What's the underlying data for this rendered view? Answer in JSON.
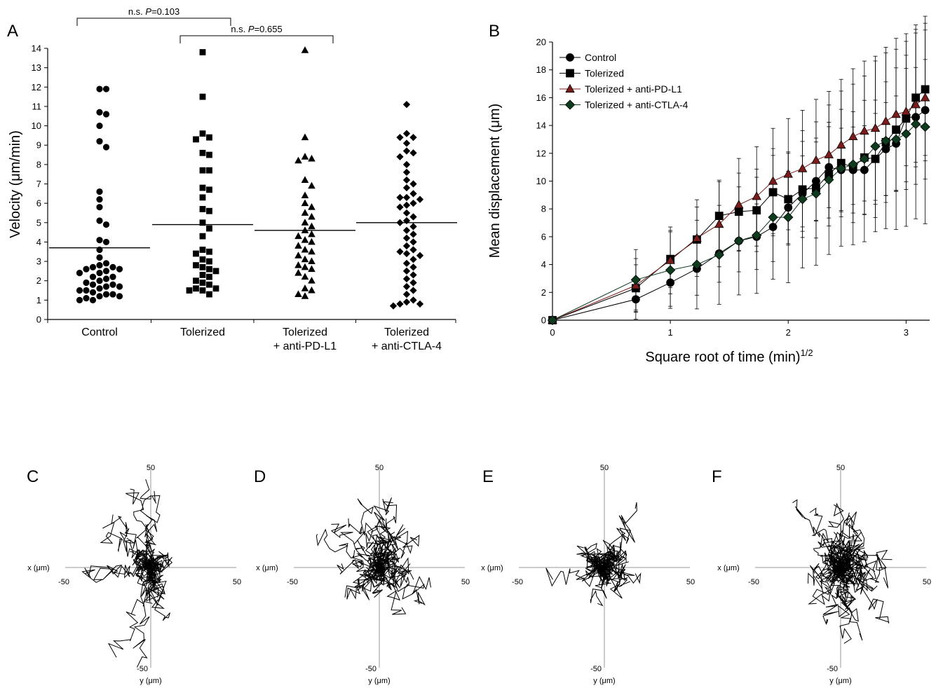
{
  "panels": {
    "A": "A",
    "B": "B",
    "C": "C",
    "D": "D",
    "E": "E",
    "F": "F"
  },
  "colors": {
    "control": "#000000",
    "tolerized": "#000000",
    "pdl1": "#7a1c1c",
    "ctla4": "#0e3a1e",
    "axis_grey": "#9a9a9a"
  },
  "chart_data": [
    {
      "type": "scatter",
      "panel": "A",
      "ylabel": "Velocity (μm/min)",
      "ylim": [
        0,
        14
      ],
      "yticks": [
        0,
        1,
        2,
        3,
        4,
        5,
        6,
        7,
        8,
        9,
        10,
        11,
        12,
        13,
        14
      ],
      "categories": [
        "Control",
        "Tolerized",
        "Tolerized + anti-PD-L1",
        "Tolerized + anti-CTLA-4"
      ],
      "category_label_lines": [
        [
          "Control"
        ],
        [
          "Tolerized"
        ],
        [
          "Tolerized",
          "+ anti-PD-L1"
        ],
        [
          "Tolerized",
          "+ anti-CTLA-4"
        ]
      ],
      "markers": [
        "circle",
        "square",
        "triangle",
        "diamond"
      ],
      "series": [
        {
          "values": [
            11.9,
            11.9,
            10.7,
            10.6,
            10.0,
            9.2,
            8.9,
            6.6,
            6.2,
            5.8,
            5.1,
            4.9,
            4.1,
            4.0,
            3.6,
            3.2,
            2.9,
            2.8,
            2.7,
            2.7,
            2.6,
            2.6,
            2.5,
            2.4,
            2.4,
            2.2,
            2.2,
            2.1,
            2.0,
            1.9,
            1.8,
            1.8,
            1.7,
            1.7,
            1.6,
            1.5,
            1.5,
            1.4,
            1.3,
            1.3,
            1.2,
            1.2,
            1.1,
            1.0,
            1.0
          ],
          "mean": 3.7
        },
        {
          "values": [
            13.8,
            11.5,
            9.6,
            9.4,
            9.3,
            8.6,
            8.5,
            7.7,
            7.7,
            6.8,
            6.7,
            6.3,
            5.7,
            5.6,
            5.0,
            4.7,
            4.3,
            3.6,
            3.5,
            3.4,
            3.1,
            3.0,
            2.8,
            2.7,
            2.6,
            2.5,
            2.3,
            2.2,
            2.0,
            1.9,
            1.8,
            1.6,
            1.6,
            1.5,
            1.5,
            1.3
          ],
          "mean": 4.9
        },
        {
          "values": [
            13.9,
            9.4,
            8.4,
            8.3,
            8.2,
            7.2,
            6.9,
            6.4,
            6.0,
            5.8,
            5.5,
            5.3,
            5.0,
            4.8,
            4.6,
            4.4,
            4.3,
            4.1,
            4.0,
            3.8,
            3.6,
            3.5,
            3.3,
            3.1,
            3.0,
            2.8,
            2.7,
            2.6,
            2.4,
            2.2,
            2.0,
            1.6,
            1.5,
            1.3,
            1.2
          ],
          "mean": 4.6
        },
        {
          "values": [
            11.1,
            9.6,
            9.4,
            9.4,
            9.1,
            8.7,
            8.6,
            8.4,
            8.0,
            7.6,
            7.2,
            7.0,
            6.8,
            6.5,
            6.3,
            6.3,
            6.2,
            6.0,
            5.9,
            5.8,
            5.5,
            5.3,
            5.1,
            5.0,
            4.8,
            4.6,
            4.4,
            4.2,
            4.0,
            3.8,
            3.6,
            3.5,
            3.4,
            3.3,
            3.1,
            2.9,
            2.7,
            2.5,
            2.3,
            2.1,
            1.9,
            1.7,
            1.5,
            1.3,
            1.0,
            0.9,
            0.8,
            0.8,
            0.7
          ],
          "mean": 5.0
        }
      ],
      "annotations": [
        {
          "from": 0,
          "to": 1,
          "prefix": "n.s. ",
          "pvar": "P",
          "pval": "=0.103"
        },
        {
          "from": 1,
          "to": 2,
          "prefix": "n.s. ",
          "pvar": "P",
          "pval": "=0.655"
        }
      ]
    },
    {
      "type": "line",
      "panel": "B",
      "ylabel": "Mean displacement (μm)",
      "xlabel": "Square root of time (min)",
      "xlabel_sup": "1/2",
      "xlim": [
        0,
        3.2
      ],
      "ylim": [
        0,
        20
      ],
      "xticks": [
        0,
        1,
        2,
        3
      ],
      "yticks": [
        0,
        2,
        4,
        6,
        8,
        10,
        12,
        14,
        16,
        18,
        20
      ],
      "legend_position": "top-left",
      "series": [
        {
          "name": "Control",
          "marker": "circle",
          "x": [
            0,
            0.707,
            1.0,
            1.225,
            1.414,
            1.581,
            1.732,
            1.871,
            2.0,
            2.121,
            2.236,
            2.345,
            2.449,
            2.55,
            2.646,
            2.739,
            2.828,
            2.915,
            3.0,
            3.082,
            3.162
          ],
          "y": [
            0,
            1.5,
            2.7,
            3.7,
            4.8,
            5.7,
            6.0,
            6.7,
            8.1,
            9.1,
            10.0,
            11.0,
            10.8,
            10.8,
            10.8,
            11.6,
            12.3,
            12.7,
            14.6,
            14.6,
            15.1
          ]
        },
        {
          "name": "Tolerized",
          "marker": "square",
          "x": [
            0,
            0.707,
            1.0,
            1.225,
            1.414,
            1.581,
            1.732,
            1.871,
            2.0,
            2.121,
            2.236,
            2.345,
            2.449,
            2.55,
            2.646,
            2.739,
            2.828,
            2.915,
            3.0,
            3.082,
            3.162
          ],
          "y": [
            0,
            2.3,
            4.4,
            5.8,
            7.5,
            7.8,
            7.9,
            9.2,
            8.7,
            9.4,
            9.5,
            10.5,
            11.3,
            11.0,
            11.7,
            11.6,
            12.8,
            13.7,
            14.5,
            16.0,
            16.6
          ]
        },
        {
          "name": "Tolerized + anti-PD-L1",
          "marker": "triangle",
          "x": [
            0,
            0.707,
            1.0,
            1.225,
            1.414,
            1.581,
            1.732,
            1.871,
            2.0,
            2.121,
            2.236,
            2.345,
            2.449,
            2.55,
            2.646,
            2.739,
            2.828,
            2.915,
            3.0,
            3.082,
            3.162
          ],
          "y": [
            0,
            2.5,
            4.3,
            5.9,
            6.9,
            8.3,
            8.9,
            10.0,
            10.5,
            10.9,
            11.5,
            11.9,
            12.6,
            13.2,
            13.6,
            13.8,
            14.3,
            14.8,
            15.0,
            15.5,
            16.0
          ]
        },
        {
          "name": "Tolerized + anti-CTLA-4",
          "marker": "diamond",
          "x": [
            0,
            0.707,
            1.0,
            1.225,
            1.414,
            1.581,
            1.732,
            1.871,
            2.0,
            2.121,
            2.236,
            2.345,
            2.449,
            2.55,
            2.646,
            2.739,
            2.828,
            2.915,
            3.0,
            3.082,
            3.162
          ],
          "y": [
            0,
            2.9,
            3.6,
            4.0,
            4.7,
            5.7,
            6.1,
            7.4,
            7.4,
            8.7,
            9.1,
            10.1,
            10.9,
            11.2,
            11.6,
            12.5,
            12.9,
            13.0,
            13.4,
            14.1,
            13.9
          ]
        }
      ]
    },
    {
      "type": "scatter",
      "panel": "C",
      "subtype": "track-plot",
      "xlabel": "x (μm)",
      "ylabel": "y (μm)",
      "xlim": [
        -50,
        50
      ],
      "ylim": [
        -50,
        50
      ],
      "tick_labels": {
        "x_neg": "-50",
        "x_pos": "50",
        "y_pos": "50",
        "y_neg": "-50"
      },
      "track_endpoints": [
        [
          -3,
          45
        ],
        [
          -12,
          40
        ],
        [
          -22,
          27
        ],
        [
          -28,
          20
        ],
        [
          -35,
          -5
        ],
        [
          -38,
          -3
        ],
        [
          -20,
          -45
        ],
        [
          -8,
          -50
        ],
        [
          -8,
          3
        ],
        [
          -3,
          22
        ],
        [
          2,
          39
        ],
        [
          -14,
          15
        ],
        [
          3,
          -8
        ],
        [
          5,
          3
        ],
        [
          8,
          -25
        ],
        [
          9,
          2
        ],
        [
          -2,
          -10
        ],
        [
          -4,
          6
        ],
        [
          1,
          -18
        ],
        [
          6,
          -13
        ],
        [
          -10,
          8
        ],
        [
          7,
          5
        ],
        [
          -5,
          -7
        ],
        [
          4,
          -15
        ],
        [
          10,
          1
        ],
        [
          -6,
          -3
        ]
      ]
    },
    {
      "type": "scatter",
      "panel": "D",
      "subtype": "track-plot",
      "xlabel": "x (μm)",
      "ylabel": "y (μm)",
      "xlim": [
        -50,
        50
      ],
      "ylim": [
        -50,
        50
      ],
      "tick_labels": {
        "x_neg": "-50",
        "x_pos": "50",
        "y_pos": "50",
        "y_neg": "-50"
      },
      "track_endpoints": [
        [
          2,
          35
        ],
        [
          8,
          33
        ],
        [
          -10,
          32
        ],
        [
          -18,
          25
        ],
        [
          -28,
          22
        ],
        [
          -36,
          17
        ],
        [
          -20,
          -15
        ],
        [
          -10,
          -12
        ],
        [
          13,
          -20
        ],
        [
          20,
          -6
        ],
        [
          22,
          14
        ],
        [
          15,
          20
        ],
        [
          25,
          -18
        ],
        [
          30,
          -10
        ],
        [
          -5,
          18
        ],
        [
          4,
          25
        ],
        [
          -15,
          5
        ],
        [
          10,
          8
        ],
        [
          -8,
          -5
        ],
        [
          6,
          -8
        ],
        [
          -3,
          -15
        ],
        [
          18,
          2
        ],
        [
          -22,
          2
        ],
        [
          12,
          -2
        ],
        [
          5,
          5
        ],
        [
          -6,
          10
        ],
        [
          0,
          -5
        ],
        [
          3,
          14
        ],
        [
          -12,
          -8
        ],
        [
          9,
          18
        ]
      ]
    },
    {
      "type": "scatter",
      "panel": "E",
      "subtype": "track-plot",
      "xlabel": "x (μm)",
      "ylabel": "y (μm)",
      "xlim": [
        -50,
        50
      ],
      "ylim": [
        -50,
        50
      ],
      "tick_labels": {
        "x_neg": "-50",
        "x_pos": "50",
        "y_pos": "50",
        "y_neg": "-50"
      },
      "track_endpoints": [
        [
          18,
          30
        ],
        [
          14,
          18
        ],
        [
          -12,
          10
        ],
        [
          -14,
          6
        ],
        [
          -12,
          -5
        ],
        [
          -4,
          -18
        ],
        [
          -30,
          -6
        ],
        [
          12,
          5
        ],
        [
          18,
          -3
        ],
        [
          15,
          -7
        ],
        [
          9,
          10
        ],
        [
          -9,
          7
        ],
        [
          4,
          -8
        ],
        [
          -6,
          -3
        ],
        [
          2,
          8
        ],
        [
          -2,
          -6
        ],
        [
          7,
          2
        ],
        [
          -5,
          3
        ],
        [
          10,
          -5
        ],
        [
          -8,
          0
        ],
        [
          3,
          12
        ],
        [
          -3,
          5
        ],
        [
          6,
          -12
        ],
        [
          0,
          -3
        ]
      ]
    },
    {
      "type": "scatter",
      "panel": "F",
      "subtype": "track-plot",
      "xlabel": "x (μm)",
      "ylabel": "y (μm)",
      "xlim": [
        -50,
        50
      ],
      "ylim": [
        -50,
        50
      ],
      "tick_labels": {
        "x_neg": "-50",
        "x_pos": "50",
        "y_pos": "50",
        "y_neg": "-50"
      },
      "track_endpoints": [
        [
          -28,
          33
        ],
        [
          -18,
          28
        ],
        [
          -4,
          32
        ],
        [
          5,
          28
        ],
        [
          8,
          22
        ],
        [
          12,
          18
        ],
        [
          4,
          12
        ],
        [
          30,
          4
        ],
        [
          25,
          -5
        ],
        [
          18,
          -12
        ],
        [
          28,
          -28
        ],
        [
          11,
          -33
        ],
        [
          2,
          -38
        ],
        [
          -8,
          -28
        ],
        [
          -14,
          -18
        ],
        [
          -19,
          -8
        ],
        [
          -12,
          10
        ],
        [
          -9,
          6
        ],
        [
          16,
          5
        ],
        [
          20,
          -2
        ],
        [
          7,
          -8
        ],
        [
          -6,
          -10
        ],
        [
          3,
          6
        ],
        [
          -2,
          -5
        ],
        [
          9,
          2
        ],
        [
          -10,
          2
        ],
        [
          6,
          14
        ],
        [
          -4,
          18
        ],
        [
          14,
          10
        ],
        [
          -15,
          -3
        ],
        [
          2,
          -15
        ],
        [
          -7,
          12
        ],
        [
          10,
          -4
        ],
        [
          -3,
          8
        ],
        [
          5,
          -20
        ],
        [
          13,
          -8
        ],
        [
          -11,
          -14
        ],
        [
          4,
          3
        ],
        [
          -1,
          1
        ],
        [
          8,
          9
        ]
      ]
    }
  ]
}
